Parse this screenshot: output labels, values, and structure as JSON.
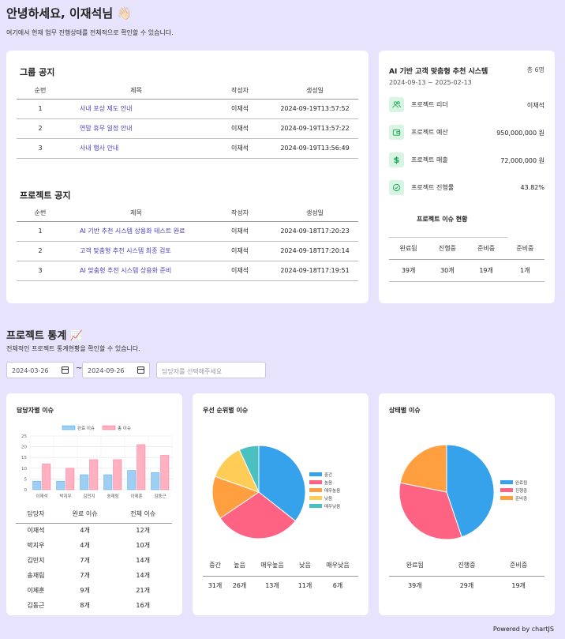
{
  "header": {
    "greeting": "안녕하세요, 이재석님",
    "wave_emoji": "👋🏻",
    "subtitle": "여기에서 현재 업무 진행상태를 전체적으로 확인할 수 있습니다."
  },
  "group_notice": {
    "title": "그룹 공지",
    "columns": [
      "순번",
      "제목",
      "작성자",
      "생성일"
    ],
    "rows": [
      {
        "no": "1",
        "title": "사내 포상 제도 안내",
        "author": "이재석",
        "date": "2024-09-19T13:57:52"
      },
      {
        "no": "2",
        "title": "연말 휴무 일정 안내",
        "author": "이재석",
        "date": "2024-09-19T13:57:22"
      },
      {
        "no": "3",
        "title": "사내 행사 안내",
        "author": "이재석",
        "date": "2024-09-19T13:56:49"
      }
    ]
  },
  "project_notice": {
    "title": "프로젝트 공지",
    "columns": [
      "순번",
      "제목",
      "작성자",
      "생성일"
    ],
    "rows": [
      {
        "no": "1",
        "title": "AI 기반 추천 시스템 상용화 테스트 완료",
        "author": "이재석",
        "date": "2024-09-18T17:20:23"
      },
      {
        "no": "2",
        "title": "고객 맞춤형 추천 시스템 최종 검토",
        "author": "이재석",
        "date": "2024-09-18T17:20:14"
      },
      {
        "no": "3",
        "title": "AI 맞춤형 추천 시스템 상용화 준비",
        "author": "이재석",
        "date": "2024-09-18T17:19:51"
      }
    ]
  },
  "project_card": {
    "title": "AI 기반 고객 맞춤형 추천 시스템",
    "member_count": "총 6명",
    "period": "2024-09-13 ~ 2025-02-13",
    "stats": [
      {
        "icon": "users-icon",
        "label": "프로젝트 리더",
        "value": "이재석"
      },
      {
        "icon": "wallet-icon",
        "label": "프로젝트 예산",
        "value": "950,000,000 원"
      },
      {
        "icon": "dollar-icon",
        "label": "프로젝트 매출",
        "value": "72,000,000 원"
      },
      {
        "icon": "check-circle-icon",
        "label": "프로젝트 진행률",
        "value": "43.82%"
      }
    ],
    "issue_title": "프로젝트 이슈 현황",
    "issue_columns": [
      "완료됨",
      "진행중",
      "준비중",
      "준비중"
    ],
    "issue_values": [
      "39개",
      "30개",
      "19개",
      "1개"
    ]
  },
  "stats_section": {
    "title": "프로젝트 통계",
    "emoji": "📈",
    "subtitle": "전체적인 프로젝트 통계현황을 확인할 수 있습니다.",
    "start_date": "2024-03-26",
    "end_date": "2024-09-26",
    "tilde": "~",
    "assignee_placeholder": "담당자를 선택해주세요"
  },
  "assignee_card": {
    "title": "담당자별 이슈",
    "columns": [
      "담당자",
      "완료 이슈",
      "전체 이슈"
    ],
    "rows": [
      [
        "이재석",
        "4개",
        "12개"
      ],
      [
        "박지우",
        "4개",
        "10개"
      ],
      [
        "김민지",
        "7개",
        "14개"
      ],
      [
        "송재림",
        "7개",
        "14개"
      ],
      [
        "이제훈",
        "9개",
        "21개"
      ],
      [
        "김동근",
        "8개",
        "16개"
      ]
    ]
  },
  "priority_card": {
    "title": "우선 순위별 이슈",
    "columns": [
      "중간",
      "높음",
      "매우높음",
      "낮음",
      "매우낮음"
    ],
    "values": [
      "31개",
      "26개",
      "13개",
      "11개",
      "6개"
    ]
  },
  "status_card": {
    "title": "상태별 이슈",
    "columns": [
      "완료됨",
      "진행중",
      "준비중"
    ],
    "values": [
      "39개",
      "29개",
      "19개"
    ]
  },
  "footer": {
    "powered": "Powered by chartJS"
  },
  "chart_data": [
    {
      "type": "bar",
      "categories": [
        "이재석",
        "박지우",
        "김민지",
        "송재림",
        "이제훈",
        "김동근"
      ],
      "series": [
        {
          "name": "완료 이슈",
          "values": [
            4,
            4,
            7,
            7,
            9,
            8
          ],
          "color": "#9ecff2"
        },
        {
          "name": "총 이슈",
          "values": [
            12,
            10,
            14,
            14,
            21,
            16
          ],
          "color": "#ffb1c1"
        }
      ],
      "ylim": [
        0,
        25
      ],
      "yticks": [
        0,
        5,
        10,
        15,
        20,
        25
      ],
      "legend": "top",
      "grid": true
    },
    {
      "type": "pie",
      "labels": [
        "중간",
        "높음",
        "매우높음",
        "낮음",
        "매우낮음"
      ],
      "values": [
        31,
        26,
        13,
        11,
        6
      ],
      "colors": [
        "#36a2eb",
        "#ff6384",
        "#ff9f40",
        "#ffcd56",
        "#4bc0c0"
      ],
      "legend": "right"
    },
    {
      "type": "pie",
      "labels": [
        "완료됨",
        "진행중",
        "준비중"
      ],
      "values": [
        39,
        29,
        19
      ],
      "colors": [
        "#36a2eb",
        "#ff6384",
        "#ff9f40"
      ],
      "legend": "right"
    }
  ]
}
